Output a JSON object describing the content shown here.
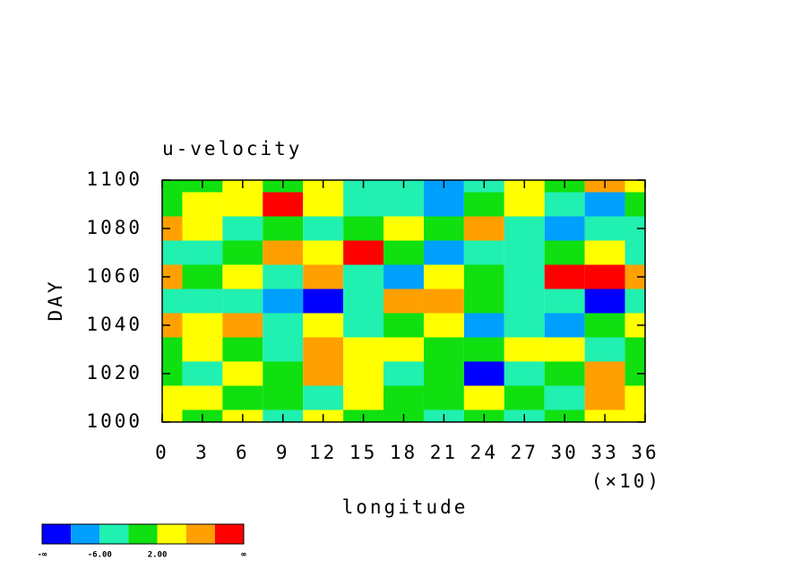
{
  "chart_data": {
    "type": "contour",
    "title": "u-velocity",
    "xlabel": "longitude",
    "ylabel": "DAY",
    "x_multiplier": "(×10)",
    "x": [
      0,
      30,
      60,
      90,
      120,
      150,
      180,
      210,
      240,
      270,
      300,
      330,
      360
    ],
    "y": [
      1000,
      1010,
      1020,
      1030,
      1040,
      1050,
      1060,
      1070,
      1080,
      1090,
      1100
    ],
    "z": [
      [
        3,
        -1,
        4,
        -3,
        4,
        0,
        -1,
        -4,
        0,
        -5,
        -1,
        3,
        2
      ],
      [
        2,
        4,
        -2,
        1,
        -3,
        5,
        0,
        -2,
        3,
        -1,
        -3,
        6,
        4
      ],
      [
        1,
        -4,
        3,
        -1,
        8,
        2,
        -3,
        -1,
        -12,
        -4,
        0,
        7,
        -2
      ],
      [
        -2,
        2,
        1,
        -5,
        6,
        3,
        5,
        0,
        -2,
        5,
        3,
        -3,
        1
      ],
      [
        7,
        3,
        8,
        -5,
        2,
        -4,
        1,
        3,
        -7,
        -3,
        -8,
        -1,
        5
      ],
      [
        -6,
        -3,
        -5,
        -10,
        -12,
        -3,
        6,
        8,
        -2,
        -4,
        -6,
        -12,
        -4
      ],
      [
        9,
        -1,
        3,
        -4,
        7,
        -3,
        -8,
        2,
        1,
        -6,
        12,
        12,
        9
      ],
      [
        -3,
        -6,
        -2,
        6,
        3,
        11,
        -2,
        -7,
        -4,
        -5,
        -2,
        4,
        -3
      ],
      [
        7,
        2,
        -3,
        1,
        -6,
        -2,
        3,
        1,
        6,
        -4,
        -9,
        -3,
        -6
      ],
      [
        1,
        5,
        4,
        11,
        2,
        -4,
        -3,
        -7,
        -1,
        3,
        -3,
        -9,
        0
      ],
      [
        -2,
        -1,
        2,
        0,
        4,
        -3,
        -5,
        -8,
        -4,
        3,
        -2,
        8,
        2
      ]
    ],
    "levels": [
      -10,
      -6,
      -2,
      2,
      6,
      10
    ],
    "colors": [
      "#0000ff",
      "#00a0ff",
      "#20f0b0",
      "#10e010",
      "#ffff00",
      "#ffa000",
      "#ff0000"
    ],
    "colorbar_ticks": [
      {
        "value": null,
        "label": "-∞"
      },
      {
        "value": -6,
        "label": "-6.00"
      },
      {
        "value": 2,
        "label": "2.00"
      },
      {
        "value": null,
        "label": "∞"
      }
    ],
    "xlim": [
      0,
      360
    ],
    "ylim": [
      1000,
      1100
    ],
    "xticks": [
      {
        "value": 0,
        "label": "0"
      },
      {
        "value": 30,
        "label": "3"
      },
      {
        "value": 60,
        "label": "6"
      },
      {
        "value": 90,
        "label": "9"
      },
      {
        "value": 120,
        "label": "12"
      },
      {
        "value": 150,
        "label": "15"
      },
      {
        "value": 180,
        "label": "18"
      },
      {
        "value": 210,
        "label": "21"
      },
      {
        "value": 240,
        "label": "24"
      },
      {
        "value": 270,
        "label": "27"
      },
      {
        "value": 300,
        "label": "30"
      },
      {
        "value": 330,
        "label": "33"
      },
      {
        "value": 360,
        "label": "36"
      }
    ],
    "yticks": [
      1000,
      1020,
      1040,
      1060,
      1080,
      1100
    ]
  }
}
